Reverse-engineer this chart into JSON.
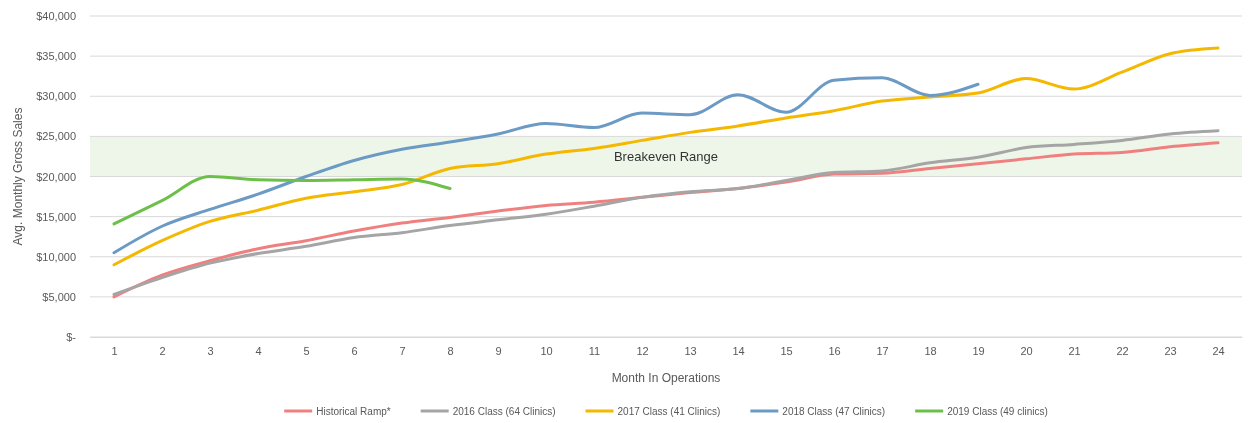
{
  "chart_data": {
    "type": "line",
    "xlabel": "Month In Operations",
    "ylabel": "Avg. Monthly Gross Sales",
    "x": [
      1,
      2,
      3,
      4,
      5,
      6,
      7,
      8,
      9,
      10,
      11,
      12,
      13,
      14,
      15,
      16,
      17,
      18,
      19,
      20,
      21,
      22,
      23,
      24
    ],
    "xlim": [
      0.5,
      24.5
    ],
    "xticks": [
      1,
      2,
      3,
      4,
      5,
      6,
      7,
      8,
      9,
      10,
      11,
      12,
      13,
      14,
      15,
      16,
      17,
      18,
      19,
      20,
      21,
      22,
      23,
      24
    ],
    "ylim": [
      0,
      40000
    ],
    "yticks": [
      {
        "value": 0,
        "label": "$-"
      },
      {
        "value": 5000,
        "label": "$5,000"
      },
      {
        "value": 10000,
        "label": "$10,000"
      },
      {
        "value": 15000,
        "label": "$15,000"
      },
      {
        "value": 20000,
        "label": "$20,000"
      },
      {
        "value": 25000,
        "label": "$25,000"
      },
      {
        "value": 30000,
        "label": "$30,000"
      },
      {
        "value": 35000,
        "label": "$35,000"
      },
      {
        "value": 40000,
        "label": "$40,000"
      }
    ],
    "grid": "y",
    "legend": "bottom",
    "marker": "none",
    "line_style": "solid",
    "bands": [
      {
        "axis": "y",
        "from": 20000,
        "to": 25000,
        "label": "Breakeven Range",
        "color": "#eef6ea"
      }
    ],
    "series": [
      {
        "name": "Historical Ramp*",
        "color": "#f08080",
        "values": [
          5000,
          7700,
          9500,
          11000,
          12000,
          13200,
          14200,
          14900,
          15700,
          16400,
          16800,
          17400,
          18000,
          18500,
          19300,
          20300,
          20400,
          21000,
          21600,
          22200,
          22800,
          23000,
          23700,
          24200
        ]
      },
      {
        "name": "2016 Class (64 Clinics)",
        "color": "#a5a5a5",
        "values": [
          5300,
          7400,
          9200,
          10400,
          11300,
          12400,
          13000,
          13900,
          14600,
          15300,
          16300,
          17400,
          18100,
          18500,
          19500,
          20500,
          20700,
          21700,
          22400,
          23600,
          24000,
          24500,
          25300,
          25700
        ]
      },
      {
        "name": "2017 Class (41 Clinics)",
        "color": "#f5b800",
        "values": [
          9000,
          12000,
          14400,
          15800,
          17300,
          18100,
          19000,
          21000,
          21600,
          22800,
          23500,
          24500,
          25500,
          26300,
          27300,
          28200,
          29400,
          29900,
          30400,
          32200,
          30900,
          33000,
          35300,
          36000
        ]
      },
      {
        "name": "2018 Class (47 Clinics)",
        "color": "#6b9ac4",
        "values": [
          10500,
          13800,
          15900,
          17800,
          20000,
          22000,
          23400,
          24300,
          25300,
          26600,
          26100,
          27900,
          27700,
          30200,
          28000,
          32000,
          32300,
          30100,
          31500,
          null,
          null,
          null,
          null,
          null
        ]
      },
      {
        "name": "2019 Class (49 clinics)",
        "color": "#6cc04a",
        "values": [
          14100,
          17000,
          20000,
          19600,
          19500,
          19600,
          19700,
          18500,
          null,
          null,
          null,
          null,
          null,
          null,
          null,
          null,
          null,
          null,
          null,
          null,
          null,
          null,
          null,
          null
        ]
      }
    ]
  }
}
